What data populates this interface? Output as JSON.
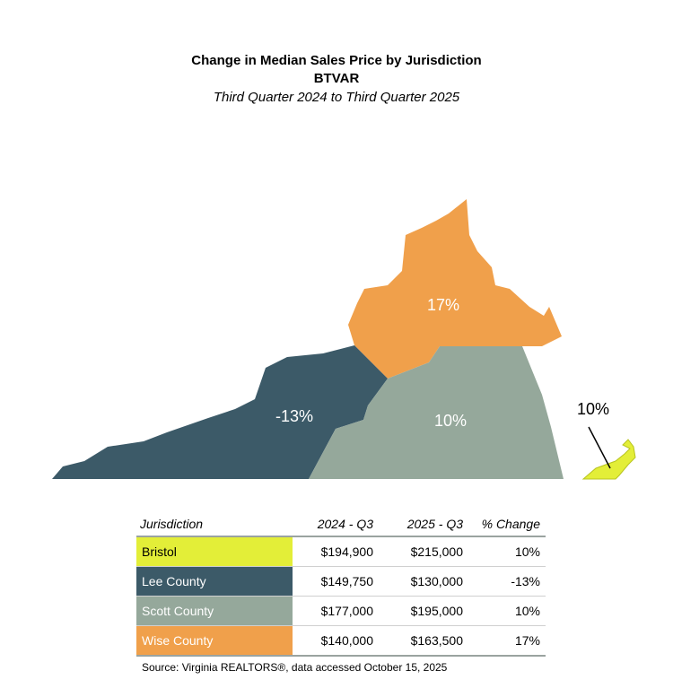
{
  "title": "Change in Median Sales Price by Jurisdiction",
  "subtitle": "BTVAR",
  "period": "Third Quarter 2024 to Third Quarter 2025",
  "colors": {
    "bristol": "#e3ee38",
    "lee": "#3c5a68",
    "scott": "#95a89b",
    "wise": "#f0a04b"
  },
  "map": {
    "wise_label": "17%",
    "lee_label": "-13%",
    "scott_label": "10%",
    "bristol_label": "10%"
  },
  "table": {
    "headers": [
      "Jurisdiction",
      "2024 - Q3",
      "2025 - Q3",
      "% Change"
    ],
    "rows": [
      {
        "name": "Bristol",
        "q3_2024": "$194,900",
        "q3_2025": "$215,000",
        "change": "10%"
      },
      {
        "name": "Lee County",
        "q3_2024": "$149,750",
        "q3_2025": "$130,000",
        "change": "-13%"
      },
      {
        "name": "Scott County",
        "q3_2024": "$177,000",
        "q3_2025": "$195,000",
        "change": "10%"
      },
      {
        "name": "Wise County",
        "q3_2024": "$140,000",
        "q3_2025": "$163,500",
        "change": "17%"
      }
    ]
  },
  "source": "Source: Virginia REALTORS®, data accessed October 15, 2025"
}
